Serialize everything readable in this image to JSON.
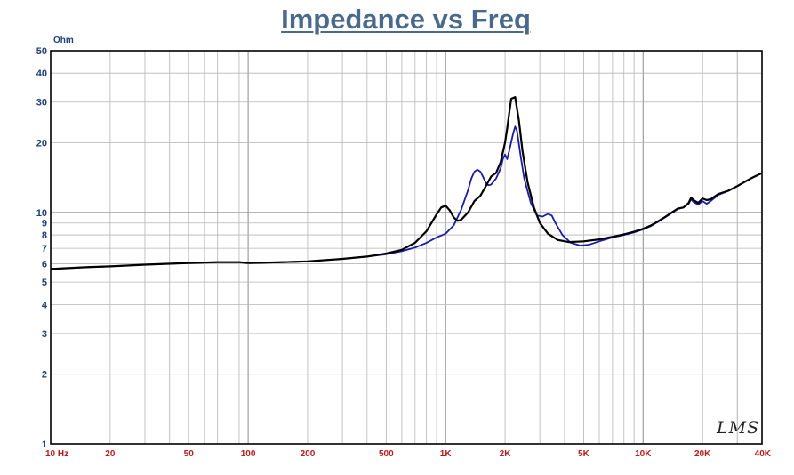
{
  "chart_data": {
    "type": "line",
    "title": "Impedance vs Freq",
    "ylabel": "Ohm",
    "watermark": "LMS",
    "x_scale": "log",
    "y_scale": "log",
    "xlim": [
      10,
      40000
    ],
    "ylim": [
      1,
      50
    ],
    "grid": true,
    "x_tick_labels": [
      {
        "value": 10,
        "label": "10  Hz"
      },
      {
        "value": 20,
        "label": "20"
      },
      {
        "value": 50,
        "label": "50"
      },
      {
        "value": 100,
        "label": "100"
      },
      {
        "value": 200,
        "label": "200"
      },
      {
        "value": 500,
        "label": "500"
      },
      {
        "value": 1000,
        "label": "1K"
      },
      {
        "value": 2000,
        "label": "2K"
      },
      {
        "value": 5000,
        "label": "5K"
      },
      {
        "value": 10000,
        "label": "10K"
      },
      {
        "value": 20000,
        "label": "20K"
      },
      {
        "value": 40000,
        "label": "40K"
      }
    ],
    "y_tick_labels": [
      {
        "value": 1,
        "label": "1"
      },
      {
        "value": 2,
        "label": "2"
      },
      {
        "value": 3,
        "label": "3"
      },
      {
        "value": 4,
        "label": "4"
      },
      {
        "value": 5,
        "label": "5"
      },
      {
        "value": 6,
        "label": "6"
      },
      {
        "value": 7,
        "label": "7"
      },
      {
        "value": 8,
        "label": "8"
      },
      {
        "value": 9,
        "label": "9"
      },
      {
        "value": 10,
        "label": "10"
      },
      {
        "value": 20,
        "label": "20"
      },
      {
        "value": 30,
        "label": "30"
      },
      {
        "value": 40,
        "label": "40"
      },
      {
        "value": 50,
        "label": "50"
      }
    ],
    "series": [
      {
        "color": "#000000",
        "points": [
          [
            10,
            5.7
          ],
          [
            15,
            5.8
          ],
          [
            20,
            5.85
          ],
          [
            30,
            5.95
          ],
          [
            50,
            6.05
          ],
          [
            70,
            6.1
          ],
          [
            90,
            6.1
          ],
          [
            100,
            6.05
          ],
          [
            150,
            6.1
          ],
          [
            200,
            6.15
          ],
          [
            300,
            6.3
          ],
          [
            400,
            6.45
          ],
          [
            500,
            6.65
          ],
          [
            600,
            6.9
          ],
          [
            700,
            7.4
          ],
          [
            800,
            8.3
          ],
          [
            900,
            9.8
          ],
          [
            950,
            10.5
          ],
          [
            1000,
            10.7
          ],
          [
            1050,
            10.2
          ],
          [
            1100,
            9.5
          ],
          [
            1150,
            9.2
          ],
          [
            1200,
            9.3
          ],
          [
            1300,
            10.0
          ],
          [
            1400,
            11.2
          ],
          [
            1500,
            11.8
          ],
          [
            1600,
            13.0
          ],
          [
            1700,
            14.3
          ],
          [
            1800,
            14.8
          ],
          [
            1900,
            16.5
          ],
          [
            2000,
            20.0
          ],
          [
            2050,
            23.0
          ],
          [
            2100,
            27.0
          ],
          [
            2150,
            31.0
          ],
          [
            2250,
            31.5
          ],
          [
            2350,
            25.0
          ],
          [
            2450,
            18.5
          ],
          [
            2600,
            13.5
          ],
          [
            2800,
            10.5
          ],
          [
            3000,
            9.0
          ],
          [
            3300,
            8.1
          ],
          [
            3700,
            7.6
          ],
          [
            4200,
            7.45
          ],
          [
            5000,
            7.5
          ],
          [
            6000,
            7.65
          ],
          [
            7000,
            7.85
          ],
          [
            8000,
            8.05
          ],
          [
            9000,
            8.25
          ],
          [
            10000,
            8.5
          ],
          [
            11000,
            8.8
          ],
          [
            12000,
            9.2
          ],
          [
            13000,
            9.6
          ],
          [
            14000,
            10.0
          ],
          [
            15000,
            10.4
          ],
          [
            16000,
            10.5
          ],
          [
            17000,
            11.0
          ],
          [
            17500,
            11.6
          ],
          [
            18000,
            11.3
          ],
          [
            19000,
            11.0
          ],
          [
            20000,
            11.5
          ],
          [
            21000,
            11.3
          ],
          [
            22000,
            11.4
          ],
          [
            24000,
            12.0
          ],
          [
            27000,
            12.4
          ],
          [
            30000,
            13.0
          ],
          [
            35000,
            14.0
          ],
          [
            40000,
            14.8
          ]
        ]
      },
      {
        "color": "#1a1aa6",
        "points": [
          [
            10,
            5.7
          ],
          [
            15,
            5.8
          ],
          [
            20,
            5.85
          ],
          [
            30,
            5.95
          ],
          [
            50,
            6.05
          ],
          [
            70,
            6.1
          ],
          [
            90,
            6.1
          ],
          [
            100,
            6.05
          ],
          [
            150,
            6.1
          ],
          [
            200,
            6.15
          ],
          [
            300,
            6.3
          ],
          [
            400,
            6.45
          ],
          [
            500,
            6.6
          ],
          [
            600,
            6.8
          ],
          [
            700,
            7.05
          ],
          [
            800,
            7.4
          ],
          [
            900,
            7.8
          ],
          [
            1000,
            8.1
          ],
          [
            1100,
            8.8
          ],
          [
            1200,
            10.3
          ],
          [
            1300,
            12.5
          ],
          [
            1350,
            14.0
          ],
          [
            1400,
            15.0
          ],
          [
            1450,
            15.3
          ],
          [
            1500,
            15.0
          ],
          [
            1550,
            14.2
          ],
          [
            1600,
            13.4
          ],
          [
            1650,
            13.1
          ],
          [
            1700,
            13.2
          ],
          [
            1800,
            14.0
          ],
          [
            1900,
            15.5
          ],
          [
            1950,
            17.0
          ],
          [
            2000,
            17.8
          ],
          [
            2050,
            17.0
          ],
          [
            2100,
            18.5
          ],
          [
            2200,
            22.0
          ],
          [
            2250,
            23.5
          ],
          [
            2300,
            22.5
          ],
          [
            2400,
            17.5
          ],
          [
            2500,
            14.0
          ],
          [
            2700,
            11.0
          ],
          [
            2900,
            9.7
          ],
          [
            3100,
            9.6
          ],
          [
            3300,
            9.85
          ],
          [
            3450,
            9.7
          ],
          [
            3600,
            9.0
          ],
          [
            3900,
            8.0
          ],
          [
            4300,
            7.4
          ],
          [
            4800,
            7.2
          ],
          [
            5300,
            7.25
          ],
          [
            6000,
            7.5
          ],
          [
            7000,
            7.8
          ],
          [
            8000,
            8.0
          ],
          [
            9000,
            8.2
          ],
          [
            10000,
            8.45
          ],
          [
            11000,
            8.75
          ],
          [
            12000,
            9.15
          ],
          [
            13000,
            9.55
          ],
          [
            14000,
            9.95
          ],
          [
            15000,
            10.35
          ],
          [
            16000,
            10.5
          ],
          [
            17000,
            10.9
          ],
          [
            17500,
            11.4
          ],
          [
            18000,
            11.1
          ],
          [
            19000,
            10.8
          ],
          [
            20000,
            11.2
          ],
          [
            21000,
            10.9
          ],
          [
            22000,
            11.2
          ],
          [
            24000,
            11.9
          ],
          [
            27000,
            12.4
          ],
          [
            30000,
            13.0
          ],
          [
            35000,
            14.0
          ],
          [
            40000,
            14.8
          ]
        ]
      }
    ]
  }
}
